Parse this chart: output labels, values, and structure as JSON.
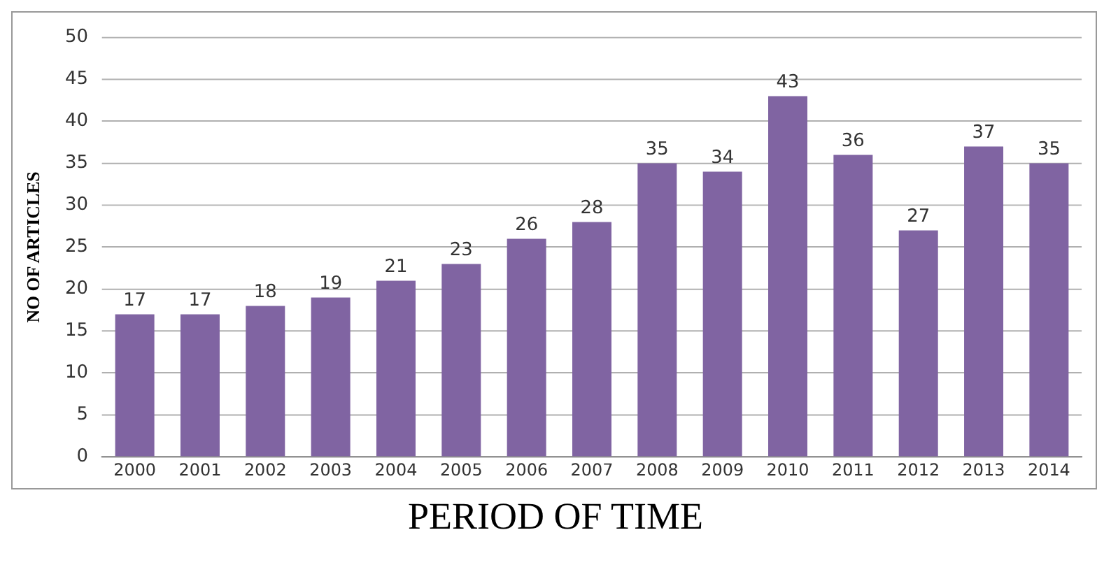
{
  "chart_data": {
    "type": "bar",
    "xlabel": "PERIOD OF TIME",
    "ylabel": "NO OF ARTICLES",
    "categories": [
      "2000",
      "2001",
      "2002",
      "2003",
      "2004",
      "2005",
      "2006",
      "2007",
      "2008",
      "2009",
      "2010",
      "2011",
      "2012",
      "2013",
      "2014"
    ],
    "values": [
      17,
      17,
      18,
      19,
      21,
      23,
      26,
      28,
      35,
      34,
      43,
      36,
      27,
      37,
      35
    ],
    "color": "#8064a2",
    "ylim": [
      0,
      50
    ],
    "yticks": [
      0,
      5,
      10,
      15,
      20,
      25,
      30,
      35,
      40,
      45,
      50
    ],
    "grid": "y",
    "data_labels": true,
    "legend": false
  }
}
